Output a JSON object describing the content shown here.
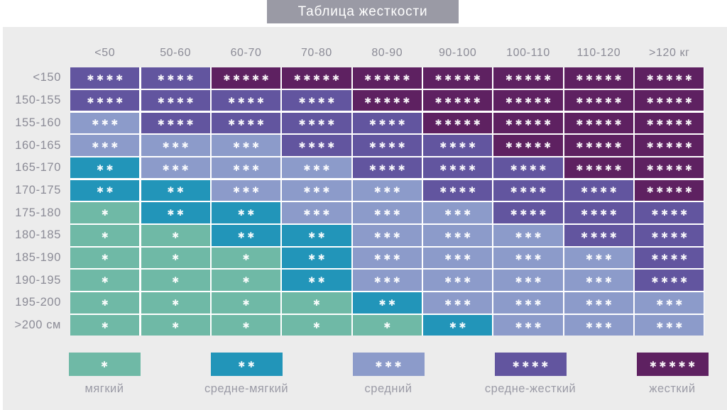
{
  "title": "Таблица жесткости",
  "star_char": "✱",
  "chart_data": {
    "type": "heatmap",
    "title": "Таблица жесткости",
    "x_axis_meaning": "вес",
    "y_axis_meaning": "рост",
    "x_categories": [
      "<50",
      "50-60",
      "60-70",
      "70-80",
      "80-90",
      "90-100",
      "100-110",
      "110-120",
      ">120 кг"
    ],
    "y_categories": [
      "<150",
      "150-155",
      "155-160",
      "160-165",
      "165-170",
      "170-175",
      "175-180",
      "180-185",
      "185-190",
      "190-195",
      "195-200",
      ">200 см"
    ],
    "values": [
      [
        4,
        4,
        5,
        5,
        5,
        5,
        5,
        5,
        5
      ],
      [
        4,
        4,
        4,
        4,
        5,
        5,
        5,
        5,
        5
      ],
      [
        3,
        4,
        4,
        4,
        4,
        5,
        5,
        5,
        5
      ],
      [
        3,
        3,
        3,
        4,
        4,
        4,
        5,
        5,
        5
      ],
      [
        2,
        3,
        3,
        3,
        4,
        4,
        4,
        5,
        5
      ],
      [
        2,
        2,
        3,
        3,
        3,
        4,
        4,
        4,
        5
      ],
      [
        1,
        2,
        2,
        3,
        3,
        3,
        4,
        4,
        4
      ],
      [
        1,
        1,
        2,
        2,
        3,
        3,
        3,
        4,
        4
      ],
      [
        1,
        1,
        1,
        2,
        3,
        3,
        3,
        3,
        4
      ],
      [
        1,
        1,
        1,
        2,
        3,
        3,
        3,
        3,
        4
      ],
      [
        1,
        1,
        1,
        1,
        2,
        3,
        3,
        3,
        3
      ],
      [
        1,
        1,
        1,
        1,
        1,
        2,
        3,
        3,
        3
      ]
    ],
    "palette": {
      "1": "#6fb9a6",
      "2": "#2295b9",
      "3": "#8c9bca",
      "4": "#62559f",
      "5": "#5e2161"
    },
    "legend": [
      {
        "value": 1,
        "label": "мягкий"
      },
      {
        "value": 2,
        "label": "средне-мягкий"
      },
      {
        "value": 3,
        "label": "средний"
      },
      {
        "value": 4,
        "label": "средне-жесткий"
      },
      {
        "value": 5,
        "label": "жесткий"
      }
    ],
    "legend_position": "bottom"
  },
  "colors": {
    "title_bg": "#9a9aa5",
    "panel_bg": "#ececec",
    "label_text": "#8b8b96",
    "cell_gap": "#ffffff"
  }
}
